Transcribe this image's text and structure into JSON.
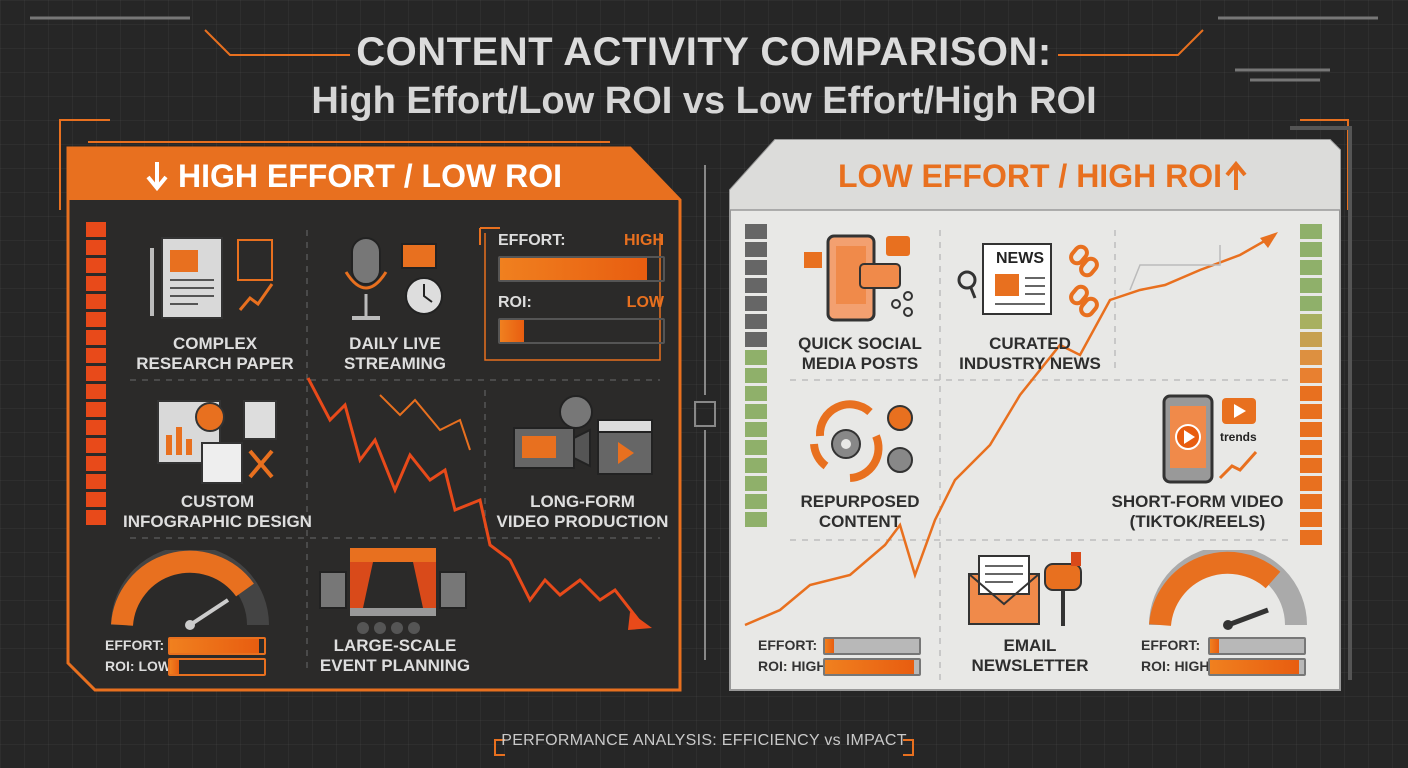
{
  "title": {
    "line1": "CONTENT ACTIVITY COMPARISON:",
    "line2": "High Effort/Low ROI vs Low Effort/High ROI"
  },
  "left_panel": {
    "header": "HIGH EFFORT / LOW ROI",
    "header_icon": "arrow-down-icon",
    "accent_color": "#e8701f",
    "meter": {
      "effort_label": "EFFORT:",
      "effort_value": "HIGH",
      "effort_fill": 0.9,
      "roi_label": "ROI:",
      "roi_value": "LOW",
      "roi_fill": 0.15
    },
    "items": [
      {
        "line1": "COMPLEX",
        "line2": "RESEARCH PAPER",
        "icon": "document-icon"
      },
      {
        "line1": "DAILY LIVE",
        "line2": "STREAMING",
        "icon": "microphone-icon"
      },
      {
        "line1": "CUSTOM",
        "line2": "INFOGRAPHIC DESIGN",
        "icon": "infographic-icon"
      },
      {
        "line1": "LONG-FORM",
        "line2": "VIDEO PRODUCTION",
        "icon": "film-camera-icon"
      },
      {
        "line1": "LARGE-SCALE",
        "line2": "EVENT PLANNING",
        "icon": "stage-icon"
      }
    ],
    "gauge": {
      "effort_label": "EFFORT:",
      "roi_label": "ROI: LOW",
      "effort_fill": 0.95,
      "roi_fill": 0.1
    }
  },
  "right_panel": {
    "header": "LOW EFFORT / HIGH ROI",
    "header_icon": "arrow-up-icon",
    "items": [
      {
        "line1": "QUICK SOCIAL",
        "line2": "MEDIA POSTS",
        "icon": "smartphone-icon"
      },
      {
        "line1": "CURATED",
        "line2": "INDUSTRY NEWS",
        "icon": "newspaper-icon"
      },
      {
        "line1": "REPURPOSED",
        "line2": "CONTENT",
        "icon": "recycle-icon"
      },
      {
        "line1": "SHORT-FORM VIDEO",
        "line2": "(TIKTOK/REELS)",
        "icon": "phone-video-icon"
      },
      {
        "line1": "EMAIL",
        "line2": "NEWSLETTER",
        "icon": "envelope-icon"
      }
    ],
    "newspaper_text": "NEWS",
    "trends_text": "trends",
    "bars_left": {
      "effort_label": "EFFORT:",
      "roi_label": "ROI: HIGH",
      "effort_fill": 0.1,
      "roi_fill": 0.95
    },
    "bars_right": {
      "effort_label": "EFFORT:",
      "roi_label": "ROI: HIGH",
      "effort_fill": 0.1,
      "roi_fill": 0.95
    }
  },
  "footer": "PERFORMANCE ANALYSIS: EFFICIENCY vs IMPACT"
}
